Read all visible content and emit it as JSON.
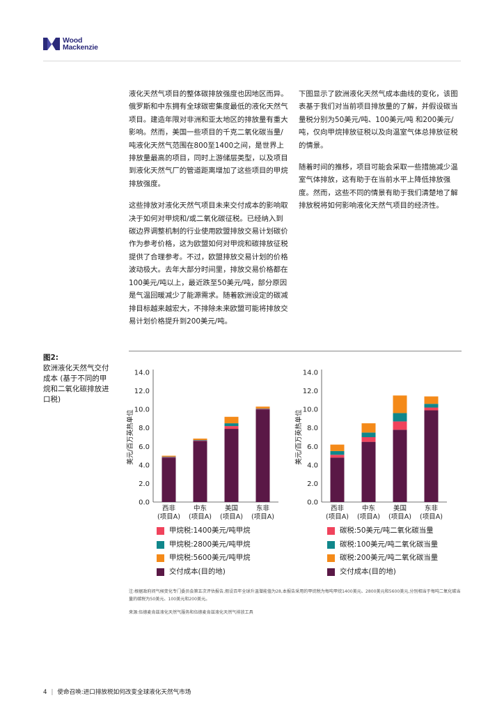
{
  "brand": {
    "line1": "Wood",
    "line2": "Mackenzie",
    "color": "#2b2a7a"
  },
  "left_column": [
    "液化天然气项目的整体碳排放强度也因地区而异。俄罗斯和中东拥有全球碳密集度最低的液化天然气项目。建造年限对非洲和亚太地区的排放量有重大影响。然而，美国一些项目的千克二氧化碳当量/吨液化天然气范围在800至1400之间，是世界上排放量最高的项目，同时上游储层类型，以及项目到液化天然气厂的管道距离增加了这些项目的甲烷排放强度。",
    "这些排放对液化天然气项目未来交付成本的影响取决于如何对甲烷和/或二氧化碳征税。已经纳入到碳边界调整机制的行业使用欧盟排放交易计划碳价作为参考价格，这为欧盟如何对甲烷和碳排放征税提供了合理参考。不过，欧盟排放交易计划的价格波动极大。去年大部分时间里，排放交易价格都在100美元/吨以上，最近跌至50美元/吨，部分原因是气温回暖减少了能源需求。随着欧洲设定的碳减排目标越来越宏大，不排除未来欧盟可能将排放交易计划价格提升到200美元/吨。"
  ],
  "right_column": [
    "下图显示了欧洲液化天然气成本曲线的变化，该图表基于我们对当前项目排放量的了解，并假设碳当量税分别为50美元/吨、100美元/吨 和200美元/吨，仅向甲烷排放征税以及向温室气体总排放征税的情景。",
    "随着时间的推移，项目可能会采取一些措施减少温室气体排放，这有助于在当前水平上降低排放强度。然而，这些不同的情景有助于我们清楚地了解排放税将如何影响液化天然气项目的经济性。"
  ],
  "figure": {
    "number": "图2:",
    "caption": "欧洲液化天然气交付成本 (基于不同的甲烷和二氧化碳排放进口税)"
  },
  "chart_data": [
    {
      "type": "bar",
      "stacked": true,
      "title": "",
      "ylabel": "美元/百万英热单位",
      "ylim": [
        0,
        14
      ],
      "yticks": [
        "0.0",
        "2.0",
        "4.0",
        "6.0",
        "8.0",
        "10.0",
        "12.0",
        "14.0"
      ],
      "categories": [
        {
          "name": "西非",
          "sub": "(项目A)"
        },
        {
          "name": "中东",
          "sub": "(项目A)"
        },
        {
          "name": "美国",
          "sub": "(项目A)"
        },
        {
          "name": "东非",
          "sub": "(项目A)"
        }
      ],
      "series": [
        {
          "name": "交付成本(目的地)",
          "color": "#5a1846",
          "values": [
            4.8,
            6.6,
            7.9,
            10.0
          ]
        },
        {
          "name": "甲烷税:1400美元/吨甲烷",
          "color": "#f0435c",
          "values": [
            0.05,
            0.05,
            0.3,
            0.05
          ]
        },
        {
          "name": "甲烷税:2800美元/吨甲烷",
          "color": "#10878b",
          "values": [
            0.05,
            0.05,
            0.3,
            0.05
          ]
        },
        {
          "name": "甲烷税:5600美元/吨甲烷",
          "color": "#f48a19",
          "values": [
            0.1,
            0.15,
            0.7,
            0.2
          ]
        }
      ],
      "legend": [
        {
          "label": "甲烷税:1400美元/吨甲烷",
          "color": "#f0435c"
        },
        {
          "label": "甲烷税:2800美元/吨甲烷",
          "color": "#10878b"
        },
        {
          "label": "甲烷税:5600美元/吨甲烷",
          "color": "#f48a19"
        },
        {
          "label": "交付成本(目的地)",
          "color": "#5a1846"
        }
      ]
    },
    {
      "type": "bar",
      "stacked": true,
      "title": "",
      "ylabel": "美元/百万英热单位",
      "ylim": [
        0,
        14
      ],
      "yticks": [
        "0.0",
        "2.0",
        "4.0",
        "6.0",
        "8.0",
        "10.0",
        "12.0",
        "14.0"
      ],
      "categories": [
        {
          "name": "西非",
          "sub": "(项目A)"
        },
        {
          "name": "中东",
          "sub": "(项目A)"
        },
        {
          "name": "美国",
          "sub": "(项目A)"
        },
        {
          "name": "东非",
          "sub": "(项目A)"
        }
      ],
      "series": [
        {
          "name": "交付成本(目的地)",
          "color": "#5a1846",
          "values": [
            4.8,
            6.5,
            7.8,
            9.9
          ]
        },
        {
          "name": "碳税:50美元/吨二氧化碳当量",
          "color": "#f0435c",
          "values": [
            0.3,
            0.5,
            0.9,
            0.3
          ]
        },
        {
          "name": "碳税:100美元/吨二氧化碳当量",
          "color": "#10878b",
          "values": [
            0.4,
            0.5,
            0.9,
            0.4
          ]
        },
        {
          "name": "碳税:200美元/吨二氧化碳当量",
          "color": "#f48a19",
          "values": [
            0.7,
            1.0,
            1.9,
            0.8
          ]
        }
      ],
      "legend": [
        {
          "label": "碳税:50美元/吨二氧化碳当量",
          "color": "#f0435c"
        },
        {
          "label": "碳税:100美元/吨二氧化碳当量",
          "color": "#10878b"
        },
        {
          "label": "碳税:200美元/吨二氧化碳当量",
          "color": "#f48a19"
        },
        {
          "label": "交付成本(目的地)",
          "color": "#5a1846"
        }
      ]
    }
  ],
  "note": "注:根据政府间气候变化专门委员会第五次评估报告,假设百年全球升温潜能值为28,本报告采用的甲烷税为每吨甲烷1400美元、2800美元和5600美元,分别相当于每吨二氧化碳当量的碳税为50美元、100美元和200美元。",
  "source": "来源:伍德麦肯兹液化天然气服务和伍德麦肯兹液化天然气排放工具",
  "footer": {
    "page": "4",
    "title": "使命召唤:进口排放税如何改变全球液化天然气市场"
  }
}
